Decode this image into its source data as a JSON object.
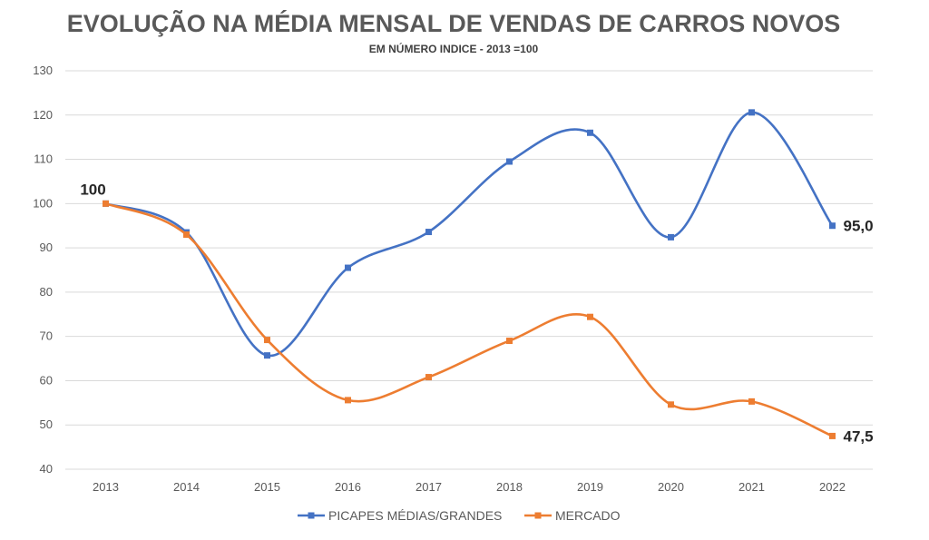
{
  "chart_data": {
    "type": "line",
    "title": "EVOLUÇÃO NA MÉDIA MENSAL DE VENDAS DE CARROS NOVOS",
    "subtitle": "EM NÚMERO INDICE - 2013 =100",
    "categories": [
      "2013",
      "2014",
      "2015",
      "2016",
      "2017",
      "2018",
      "2019",
      "2020",
      "2021",
      "2022"
    ],
    "ylim": [
      40,
      130
    ],
    "yticks": [
      "40",
      "50",
      "60",
      "70",
      "80",
      "90",
      "100",
      "110",
      "120",
      "130"
    ],
    "grid": true,
    "legend_position": "bottom",
    "series": [
      {
        "name": "PICAPES MÉDIAS/GRANDES",
        "color": "#4472C4",
        "values": [
          100,
          93.5,
          65.7,
          85.5,
          93.6,
          109.5,
          116,
          92.4,
          120.6,
          95
        ]
      },
      {
        "name": "MERCADO",
        "color": "#ED7D31",
        "values": [
          100,
          93,
          69.2,
          55.6,
          60.8,
          69,
          74.4,
          54.6,
          55.3,
          47.5
        ]
      }
    ],
    "annotations": [
      {
        "series": 0,
        "index": 0,
        "text": "100"
      },
      {
        "series": 0,
        "index": 9,
        "text": "95,0"
      },
      {
        "series": 1,
        "index": 9,
        "text": "47,5"
      }
    ]
  }
}
